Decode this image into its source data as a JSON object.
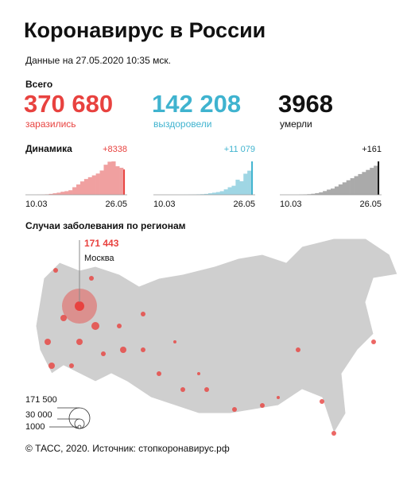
{
  "header": {
    "title": "Коронавирус в России",
    "date": "Данные на 27.05.2020 10:35 мск."
  },
  "totals": {
    "label": "Всего",
    "items": [
      {
        "value": "370 680",
        "caption": "заразились",
        "color": "#e8423f"
      },
      {
        "value": "142 208",
        "caption": "выздоровели",
        "color": "#3fb3cf"
      },
      {
        "value": "3968",
        "caption": "умерли",
        "color": "#111111"
      }
    ]
  },
  "dynamics": {
    "label": "Динамика",
    "charts": [
      {
        "peak": "+8338",
        "start": "10.03",
        "end": "26.05",
        "color": "#f0a0a0",
        "accent": "#e8423f",
        "values": [
          2,
          5,
          10,
          30,
          60,
          150,
          300,
          500,
          700,
          1000,
          1200,
          1500,
          2500,
          3400,
          4400,
          5200,
          5800,
          6400,
          7000,
          8000,
          9900,
          10900,
          11000,
          9400,
          8900,
          8338
        ]
      },
      {
        "peak": "+11 079",
        "start": "10.03",
        "end": "26.05",
        "color": "#9fd6e4",
        "accent": "#3fb3cf",
        "values": [
          0,
          0,
          0,
          1,
          3,
          5,
          10,
          20,
          30,
          60,
          100,
          150,
          200,
          300,
          500,
          700,
          900,
          1200,
          1800,
          2500,
          3000,
          5000,
          4500,
          7000,
          8000,
          11079
        ]
      },
      {
        "peak": "+161",
        "start": "10.03",
        "end": "26.05",
        "color": "#aaaaaa",
        "accent": "#111111",
        "values": [
          0,
          0,
          0,
          0,
          0,
          1,
          2,
          3,
          5,
          8,
          12,
          18,
          25,
          30,
          40,
          50,
          60,
          70,
          80,
          90,
          100,
          110,
          120,
          130,
          140,
          161
        ]
      }
    ]
  },
  "map": {
    "title": "Случаи заболевания по регионам",
    "moscow": {
      "value": "171 443",
      "name": "Москва"
    },
    "legend": [
      "171 500",
      "30 000",
      "1000"
    ]
  },
  "footer": "© ТАСС, 2020. Источник: стопкоронавирус.рф"
}
